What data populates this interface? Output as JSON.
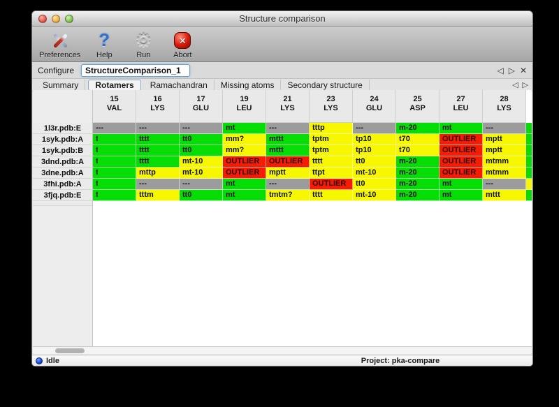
{
  "window": {
    "title": "Structure comparison"
  },
  "toolbar": {
    "buttons": [
      {
        "label": "Preferences",
        "icon": "tools-icon"
      },
      {
        "label": "Help",
        "icon": "question-icon"
      },
      {
        "label": "Run",
        "icon": "gear-icon"
      },
      {
        "label": "Abort",
        "icon": "abort-icon"
      }
    ]
  },
  "configure": {
    "label": "Configure",
    "value": "StructureComparison_1"
  },
  "nav": {
    "back": "◁",
    "forward": "▷",
    "close": "✕"
  },
  "tabs": [
    {
      "label": "Summary",
      "selected": false
    },
    {
      "label": "Rotamers",
      "selected": true
    },
    {
      "label": "Ramachandran",
      "selected": false
    },
    {
      "label": "Missing atoms",
      "selected": false
    },
    {
      "label": "Secondary structure",
      "selected": false
    }
  ],
  "colors": {
    "g": "#05dd05",
    "y": "#f7f700",
    "r": "#f41c05",
    "x": "#9c9c9c"
  },
  "table": {
    "columns": [
      {
        "num": "15",
        "res": "VAL"
      },
      {
        "num": "16",
        "res": "LYS"
      },
      {
        "num": "17",
        "res": "GLU"
      },
      {
        "num": "19",
        "res": "LEU"
      },
      {
        "num": "21",
        "res": "LYS"
      },
      {
        "num": "23",
        "res": "LYS"
      },
      {
        "num": "24",
        "res": "GLU"
      },
      {
        "num": "25",
        "res": "ASP"
      },
      {
        "num": "27",
        "res": "LEU"
      },
      {
        "num": "28",
        "res": "LYS"
      }
    ],
    "rows": [
      {
        "label": "1l3r.pdb:E",
        "edge": "g",
        "cells": [
          [
            "---",
            "x"
          ],
          [
            "---",
            "x"
          ],
          [
            "---",
            "x"
          ],
          [
            "mt",
            "g"
          ],
          [
            "---",
            "x"
          ],
          [
            "tttp",
            "y"
          ],
          [
            "---",
            "x"
          ],
          [
            "m-20",
            "g"
          ],
          [
            "mt",
            "g"
          ],
          [
            "---",
            "x"
          ]
        ]
      },
      {
        "label": "1syk.pdb:A",
        "edge": "g",
        "cells": [
          [
            "t",
            "g",
            true
          ],
          [
            "tttt",
            "g"
          ],
          [
            "tt0",
            "g"
          ],
          [
            "mm?",
            "y"
          ],
          [
            "mttt",
            "g"
          ],
          [
            "tptm",
            "y"
          ],
          [
            "tp10",
            "y"
          ],
          [
            "t70",
            "y"
          ],
          [
            "OUTLIER",
            "r"
          ],
          [
            "mptt",
            "y"
          ]
        ]
      },
      {
        "label": "1syk.pdb:B",
        "edge": "g",
        "cells": [
          [
            "t",
            "g",
            true
          ],
          [
            "tttt",
            "g"
          ],
          [
            "tt0",
            "g"
          ],
          [
            "mm?",
            "y"
          ],
          [
            "mttt",
            "g"
          ],
          [
            "tptm",
            "y"
          ],
          [
            "tp10",
            "y"
          ],
          [
            "t70",
            "y"
          ],
          [
            "OUTLIER",
            "r"
          ],
          [
            "mptt",
            "y"
          ]
        ]
      },
      {
        "label": "3dnd.pdb:A",
        "edge": "g",
        "cells": [
          [
            "t",
            "g",
            true
          ],
          [
            "tttt",
            "g"
          ],
          [
            "mt-10",
            "y"
          ],
          [
            "OUTLIER",
            "r"
          ],
          [
            "OUTLIER",
            "r"
          ],
          [
            "tttt",
            "y"
          ],
          [
            "tt0",
            "y"
          ],
          [
            "m-20",
            "g"
          ],
          [
            "OUTLIER",
            "r"
          ],
          [
            "mtmm",
            "y"
          ]
        ]
      },
      {
        "label": "3dne.pdb:A",
        "edge": "g",
        "cells": [
          [
            "t",
            "g",
            true
          ],
          [
            "mttp",
            "y"
          ],
          [
            "mt-10",
            "y"
          ],
          [
            "OUTLIER",
            "r"
          ],
          [
            "mptt",
            "y"
          ],
          [
            "ttpt",
            "y"
          ],
          [
            "mt-10",
            "y"
          ],
          [
            "m-20",
            "g"
          ],
          [
            "OUTLIER",
            "r"
          ],
          [
            "mtmm",
            "y"
          ]
        ]
      },
      {
        "label": "3fhi.pdb:A",
        "edge": "y",
        "cells": [
          [
            "t",
            "g",
            true
          ],
          [
            "---",
            "x"
          ],
          [
            "---",
            "x"
          ],
          [
            "mt",
            "g"
          ],
          [
            "---",
            "x"
          ],
          [
            "OUTLIER",
            "r"
          ],
          [
            "tt0",
            "y"
          ],
          [
            "m-20",
            "g"
          ],
          [
            "mt",
            "g"
          ],
          [
            "---",
            "x"
          ]
        ]
      },
      {
        "label": "3fjq.pdb:E",
        "edge": "g",
        "cells": [
          [
            "t",
            "g",
            true
          ],
          [
            "tttm",
            "y"
          ],
          [
            "tt0",
            "g"
          ],
          [
            "mt",
            "g"
          ],
          [
            "tmtm?",
            "y"
          ],
          [
            "tttt",
            "y"
          ],
          [
            "mt-10",
            "y"
          ],
          [
            "m-20",
            "g"
          ],
          [
            "mt",
            "g"
          ],
          [
            "mttt",
            "y"
          ]
        ]
      }
    ]
  },
  "statusbar": {
    "status": "Idle",
    "project": "Project: pka-compare"
  }
}
